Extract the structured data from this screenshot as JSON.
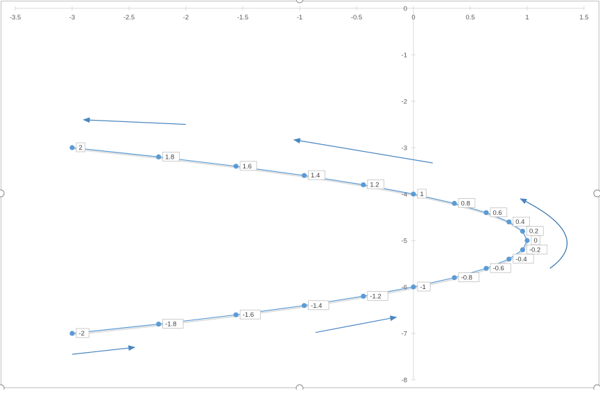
{
  "chart_data": {
    "type": "scatter",
    "title": "",
    "xlabel": "",
    "ylabel": "",
    "xlim": [
      -3.5,
      1.5
    ],
    "ylim": [
      -8,
      0
    ],
    "x_ticks": [
      -3.5,
      -3,
      -2.5,
      -2,
      -1.5,
      -1,
      -0.5,
      0,
      0.5,
      1,
      1.5
    ],
    "y_ticks": [
      0,
      -1,
      -2,
      -3,
      -4,
      -5,
      -6,
      -7,
      -8
    ],
    "x_tick_labels": [
      "-3.5",
      "-3",
      "-2.5",
      "-2",
      "-1.5",
      "-1",
      "-0.5",
      "0",
      "0.5",
      "1",
      "1.5"
    ],
    "y_tick_labels": [
      "0",
      "-1",
      "-2",
      "-3",
      "-4",
      "-5",
      "-6",
      "-7",
      "-8"
    ],
    "grid": false,
    "legend": "none",
    "series": [
      {
        "color": "#5b9bd5",
        "points": [
          {
            "x": -3,
            "y": -3,
            "label": "2"
          },
          {
            "x": -2.24,
            "y": -3.2,
            "label": "1.8"
          },
          {
            "x": -1.56,
            "y": -3.4,
            "label": "1.6"
          },
          {
            "x": -0.96,
            "y": -3.6,
            "label": "1.4"
          },
          {
            "x": -0.44,
            "y": -3.8,
            "label": "1.2"
          },
          {
            "x": 0,
            "y": -4,
            "label": "1"
          },
          {
            "x": 0.36,
            "y": -4.2,
            "label": "0.8"
          },
          {
            "x": 0.64,
            "y": -4.4,
            "label": "0.6"
          },
          {
            "x": 0.84,
            "y": -4.6,
            "label": "0.4"
          },
          {
            "x": 0.96,
            "y": -4.8,
            "label": "0.2"
          },
          {
            "x": 1,
            "y": -5,
            "label": "0"
          },
          {
            "x": 0.96,
            "y": -5.2,
            "label": "-0.2"
          },
          {
            "x": 0.84,
            "y": -5.4,
            "label": "-0.4"
          },
          {
            "x": 0.64,
            "y": -5.6,
            "label": "-0.6"
          },
          {
            "x": 0.36,
            "y": -5.8,
            "label": "-0.8"
          },
          {
            "x": 0,
            "y": -6,
            "label": "-1"
          },
          {
            "x": -0.44,
            "y": -6.2,
            "label": "-1.2"
          },
          {
            "x": -0.96,
            "y": -6.4,
            "label": "-1.4"
          },
          {
            "x": -1.56,
            "y": -6.6,
            "label": "-1.6"
          },
          {
            "x": -2.24,
            "y": -6.8,
            "label": "-1.8"
          },
          {
            "x": -3,
            "y": -7,
            "label": "-2"
          }
        ]
      }
    ],
    "annotations": [
      {
        "type": "arrow",
        "from": [
          -2.0,
          -2.5
        ],
        "to": [
          -2.9,
          -2.4
        ]
      },
      {
        "type": "arrow",
        "from": [
          0.17,
          -3.33
        ],
        "to": [
          -1.05,
          -2.83
        ]
      },
      {
        "type": "curved-arrow",
        "from": [
          1.2,
          -5.6
        ],
        "to": [
          0.94,
          -4.1
        ]
      },
      {
        "type": "arrow",
        "from": [
          -0.86,
          -6.98
        ],
        "to": [
          -0.15,
          -6.65
        ]
      },
      {
        "type": "arrow",
        "from": [
          -3.0,
          -7.45
        ],
        "to": [
          -2.45,
          -7.3
        ]
      }
    ]
  }
}
